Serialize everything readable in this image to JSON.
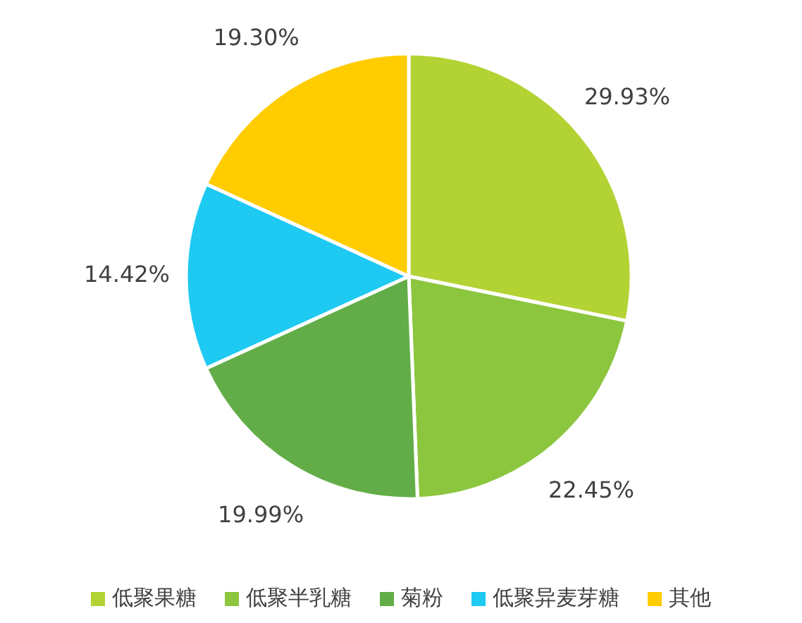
{
  "chart_data": {
    "type": "pie",
    "categories": [
      "低聚果糖",
      "低聚半乳糖",
      "菊粉",
      "低聚异麦芽糖",
      "其他"
    ],
    "values": [
      29.93,
      22.45,
      19.99,
      14.42,
      19.3
    ],
    "value_labels": [
      "29.93%",
      "22.45%",
      "19.99%",
      "14.42%",
      "19.30%"
    ],
    "colors": [
      "#b3d334",
      "#8cc63f",
      "#62ad47",
      "#1ec9f2",
      "#ffcc00"
    ],
    "legend": "bottom"
  }
}
